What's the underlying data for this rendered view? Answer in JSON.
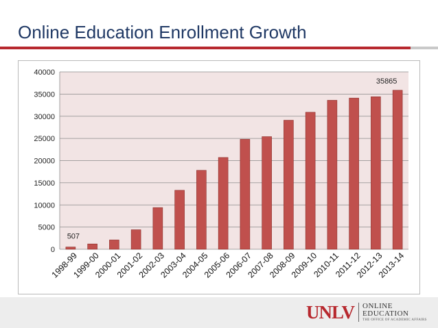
{
  "slide": {
    "title": "Online Education Enrollment Growth"
  },
  "logo": {
    "mark": "UNLV",
    "line1": "ONLINE",
    "line2": "EDUCATION",
    "line3": "THE OFFICE OF ACADEMIC AFFAIRS"
  },
  "colors": {
    "title": "#1f3864",
    "accent": "#b7282e",
    "bar": "#c0504d",
    "bar_edge": "#8c2f2b",
    "plot_bg": "#f2e4e4"
  },
  "chart_data": {
    "type": "bar",
    "title": "",
    "xlabel": "",
    "ylabel": "",
    "ylim": [
      0,
      40000
    ],
    "yticks": [
      0,
      5000,
      10000,
      15000,
      20000,
      25000,
      30000,
      35000,
      40000
    ],
    "grid": true,
    "legend": "none",
    "categories": [
      "1998-99",
      "1999-00",
      "2000-01",
      "2001-02",
      "2002-03",
      "2003-04",
      "2004-05",
      "2005-06",
      "2006-07",
      "2007-08",
      "2008-09",
      "2009-10",
      "2010-11",
      "2011-12",
      "2012-13",
      "2013-14"
    ],
    "values": [
      507,
      1200,
      2100,
      4400,
      9400,
      13300,
      17800,
      20700,
      24800,
      25400,
      29100,
      30900,
      33600,
      34100,
      34400,
      35865
    ],
    "data_labels": [
      {
        "index": 0,
        "text": "507"
      },
      {
        "index": 15,
        "text": "35865"
      }
    ]
  }
}
